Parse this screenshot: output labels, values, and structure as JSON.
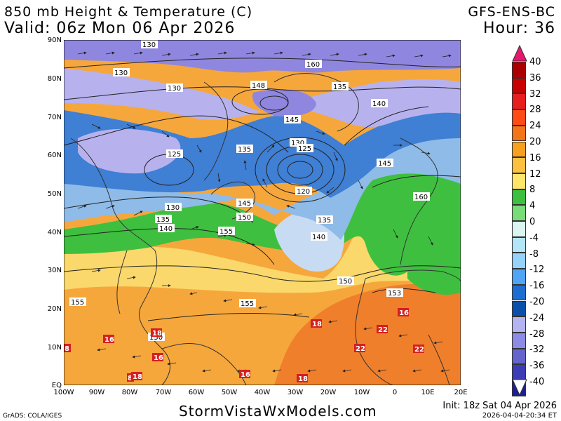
{
  "header": {
    "title": "850 mb Height & Temperature (C)",
    "valid": "Valid: 06z Mon 06 Apr 2026",
    "model": "GFS-ENS-BC",
    "hour": "Hour: 36"
  },
  "map": {
    "latitude_labels": [
      "90N",
      "80N",
      "70N",
      "60N",
      "50N",
      "40N",
      "30N",
      "20N",
      "10N",
      "EQ"
    ],
    "longitude_labels": [
      "100W",
      "90W",
      "80W",
      "70W",
      "60W",
      "50W",
      "40W",
      "30W",
      "20W",
      "10W",
      "0",
      "10E",
      "20E"
    ],
    "height_contour_labels": [
      "130",
      "130",
      "130",
      "160",
      "148",
      "135",
      "140",
      "145",
      "135",
      "130",
      "125",
      "145",
      "125",
      "160",
      "120",
      "130",
      "145",
      "150",
      "135",
      "135",
      "140",
      "155",
      "140",
      "150",
      "155",
      "155",
      "153",
      "150"
    ],
    "temperature_labels": [
      "16",
      "18",
      "16",
      "22",
      "22",
      "22",
      "8",
      "18",
      "16",
      "8",
      "18",
      "18",
      "16"
    ],
    "colors": {
      "cold_violet": "#8f87df",
      "lavender": "#b7b2ee",
      "blue": "#3f7fd4",
      "light_blue": "#8fbbe8",
      "pale_blue": "#c7dcf3",
      "green": "#3fbf3f",
      "yellow": "#fad86b",
      "orange": "#f6a73c",
      "dark_orange": "#f07f2b"
    }
  },
  "colorbar": {
    "labels": [
      "40",
      "36",
      "32",
      "28",
      "24",
      "20",
      "16",
      "12",
      "8",
      "4",
      "0",
      "-4",
      "-8",
      "-12",
      "-16",
      "-20",
      "-24",
      "-28",
      "-32",
      "-36",
      "-40"
    ],
    "colors": [
      "#aa0000",
      "#c80000",
      "#e61e1e",
      "#ff4b14",
      "#f47419",
      "#f7a01e",
      "#fcc23f",
      "#ffe66b",
      "#3fbf3f",
      "#78dc78",
      "#dcf5f0",
      "#b4e6fa",
      "#96d2fa",
      "#50a5f5",
      "#1e6ed2",
      "#0a50aa",
      "#b4b4f0",
      "#8c8ce6",
      "#6464cd",
      "#3c3cb4",
      "#1e1e96"
    ]
  },
  "footer": {
    "site": "StormVistaWxModels.com",
    "grads": "GrADS: COLA/IGES",
    "init": "Init: 18z Sat 04 Apr 2026",
    "timestamp": "2026-04-04-20:34 ET"
  }
}
